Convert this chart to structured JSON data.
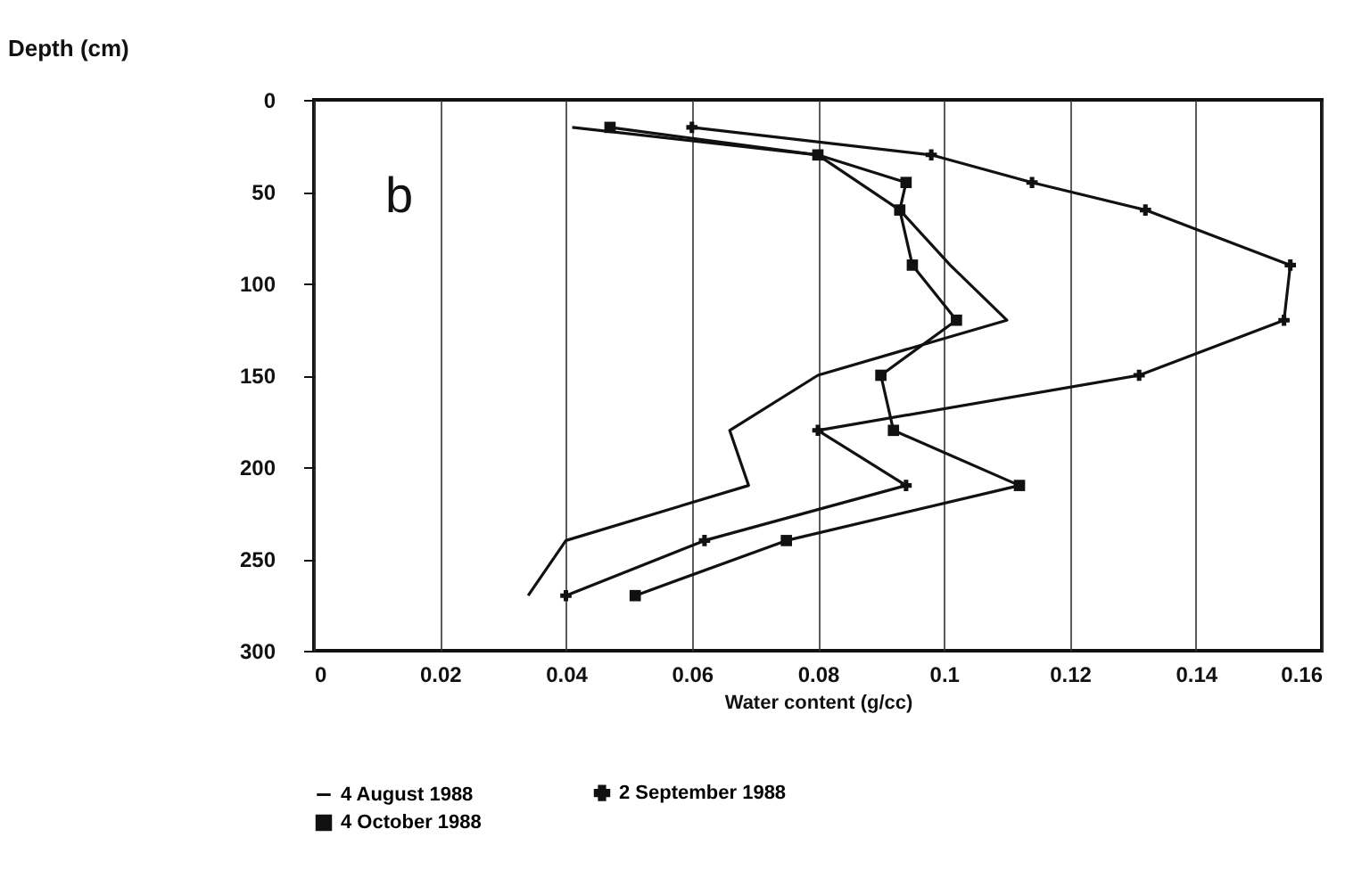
{
  "chart_data": {
    "type": "line",
    "xlabel": "Water content (g/cc)",
    "ylabel": "Depth (cm)",
    "annotations": [
      "b"
    ],
    "xlim": [
      0,
      0.16
    ],
    "xticks": [
      0,
      0.02,
      0.04,
      0.06,
      0.08,
      0.1,
      0.12,
      0.14,
      0.16
    ],
    "ylim": [
      300,
      0
    ],
    "yticks": [
      0,
      50,
      100,
      150,
      200,
      250,
      300
    ],
    "grid": "x",
    "legend": "bottom",
    "line_style": "solid",
    "series": [
      {
        "name": "4 August 1988",
        "color": "#111111",
        "marker": "none",
        "x": [
          0.041,
          0.08,
          0.093,
          0.101,
          0.11,
          0.08,
          0.066,
          0.069,
          0.04,
          0.034
        ],
        "values": [
          15,
          30,
          60,
          90,
          120,
          150,
          180,
          210,
          240,
          270
        ]
      },
      {
        "name": "2 September 1988",
        "color": "#111111",
        "marker": "cross",
        "x": [
          0.06,
          0.098,
          0.114,
          0.132,
          0.155,
          0.154,
          0.131,
          0.08,
          0.094,
          0.062,
          0.04
        ],
        "values": [
          15,
          30,
          45,
          60,
          90,
          120,
          150,
          180,
          210,
          240,
          270
        ]
      },
      {
        "name": "4 October 1988",
        "color": "#111111",
        "marker": "square",
        "x": [
          0.047,
          0.08,
          0.094,
          0.093,
          0.095,
          0.102,
          0.09,
          0.092,
          0.112,
          0.075,
          0.051
        ],
        "values": [
          15,
          30,
          45,
          60,
          90,
          120,
          150,
          180,
          210,
          240,
          270
        ]
      }
    ]
  }
}
